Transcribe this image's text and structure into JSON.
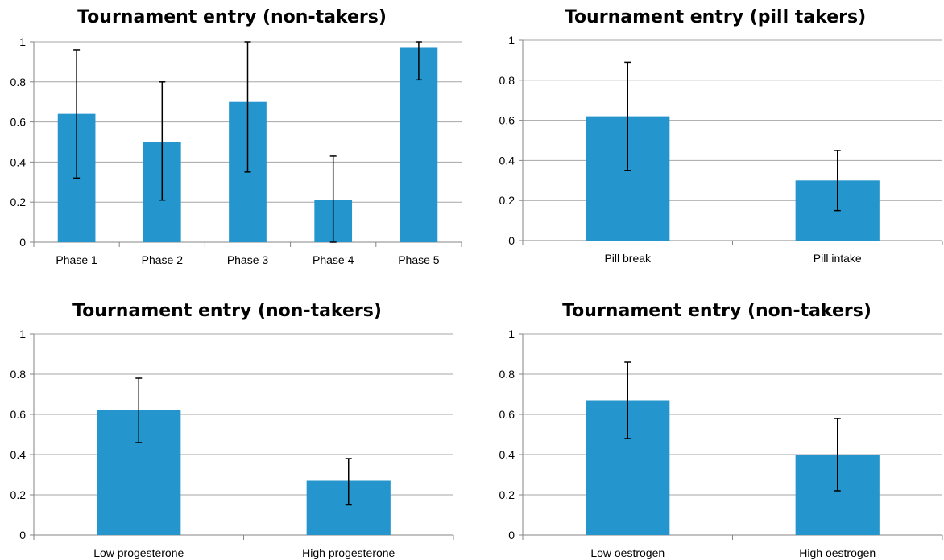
{
  "colors": {
    "bar": "#2596cd",
    "grid": "#a6a6a6",
    "axis": "#868686",
    "error_bar": "#000000"
  },
  "chart_data": [
    {
      "type": "bar",
      "title": "Tournament entry (non-takers)",
      "categories": [
        "Phase 1",
        "Phase 2",
        "Phase 3",
        "Phase 4",
        "Phase 5"
      ],
      "values": [
        0.64,
        0.5,
        0.7,
        0.21,
        0.97
      ],
      "error_low": [
        0.32,
        0.21,
        0.35,
        0.0,
        0.81
      ],
      "error_high": [
        0.96,
        0.8,
        1.0,
        0.43,
        1.0
      ],
      "ylim": [
        0,
        1
      ],
      "yticks": [
        "0",
        "0.2",
        "0.4",
        "0.6",
        "0.8",
        "1"
      ],
      "grid": true
    },
    {
      "type": "bar",
      "title": "Tournament entry (pill takers)",
      "categories": [
        "Pill break",
        "Pill intake"
      ],
      "values": [
        0.62,
        0.3
      ],
      "error_low": [
        0.35,
        0.15
      ],
      "error_high": [
        0.89,
        0.45
      ],
      "ylim": [
        0,
        1
      ],
      "yticks": [
        "0",
        "0.2",
        "0.4",
        "0.6",
        "0.8",
        "1"
      ],
      "grid": true
    },
    {
      "type": "bar",
      "title": "Tournament entry (non-takers)",
      "categories": [
        "Low progesterone",
        "High progesterone"
      ],
      "values": [
        0.62,
        0.27
      ],
      "error_low": [
        0.46,
        0.15
      ],
      "error_high": [
        0.78,
        0.38
      ],
      "ylim": [
        0,
        1
      ],
      "yticks": [
        "0",
        "0.2",
        "0.4",
        "0.6",
        "0.8",
        "1"
      ],
      "grid": true
    },
    {
      "type": "bar",
      "title": "Tournament entry (non-takers)",
      "categories": [
        "Low oestrogen",
        "High oestrogen"
      ],
      "values": [
        0.67,
        0.4
      ],
      "error_low": [
        0.48,
        0.22
      ],
      "error_high": [
        0.86,
        0.58
      ],
      "ylim": [
        0,
        1
      ],
      "yticks": [
        "0",
        "0.2",
        "0.4",
        "0.6",
        "0.8",
        "1"
      ],
      "grid": true
    }
  ]
}
